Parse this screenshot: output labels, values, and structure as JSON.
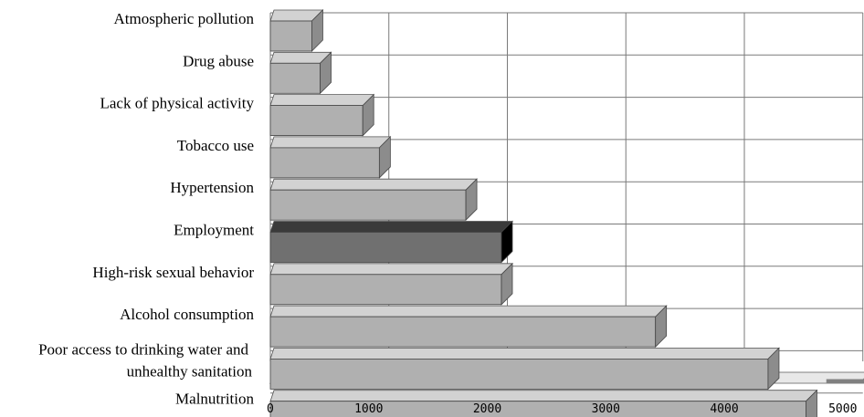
{
  "chart_data": {
    "type": "bar",
    "orientation": "horizontal",
    "categories": [
      "Atmospheric pollution",
      "Drug abuse",
      "Lack of physical activity",
      "Tobacco use",
      "Hypertension",
      "Employment",
      "High-risk sexual behavior",
      "Alcohol consumption",
      "Poor access to drinking water and unhealthy sanitation",
      "Malnutrition"
    ],
    "label_lines": [
      [
        "Atmospheric pollution"
      ],
      [
        "Drug abuse"
      ],
      [
        "Lack of physical activity"
      ],
      [
        "Tobacco  use"
      ],
      [
        "Hypertension"
      ],
      [
        "Employment"
      ],
      [
        "High-risk sexual behavior"
      ],
      [
        "Alcohol consumption"
      ],
      [
        "Poor access to drinking water and",
        "unhealthy sanitation"
      ],
      [
        "Malnutrition"
      ]
    ],
    "values": [
      350,
      420,
      780,
      920,
      1650,
      1950,
      1950,
      3250,
      4200,
      4520
    ],
    "highlight_index": 5,
    "xlim": [
      0,
      5000
    ],
    "ticks": [
      0,
      1000,
      2000,
      3000,
      4000,
      5000
    ],
    "tick_labels": [
      "0",
      "1000",
      "2000",
      "3000",
      "4000",
      "5000"
    ],
    "title": "",
    "xlabel": "",
    "ylabel": "",
    "grid": true,
    "legend": false,
    "colors": {
      "bar": "#b0b0b0",
      "bar_side": "#8c8c8c",
      "bar_top": "#d2d2d2",
      "highlight": "#707070",
      "highlight_side": "#000000",
      "highlight_top": "#3a3a3a",
      "grid": "#7a7a7a",
      "floor": "#808080"
    }
  }
}
